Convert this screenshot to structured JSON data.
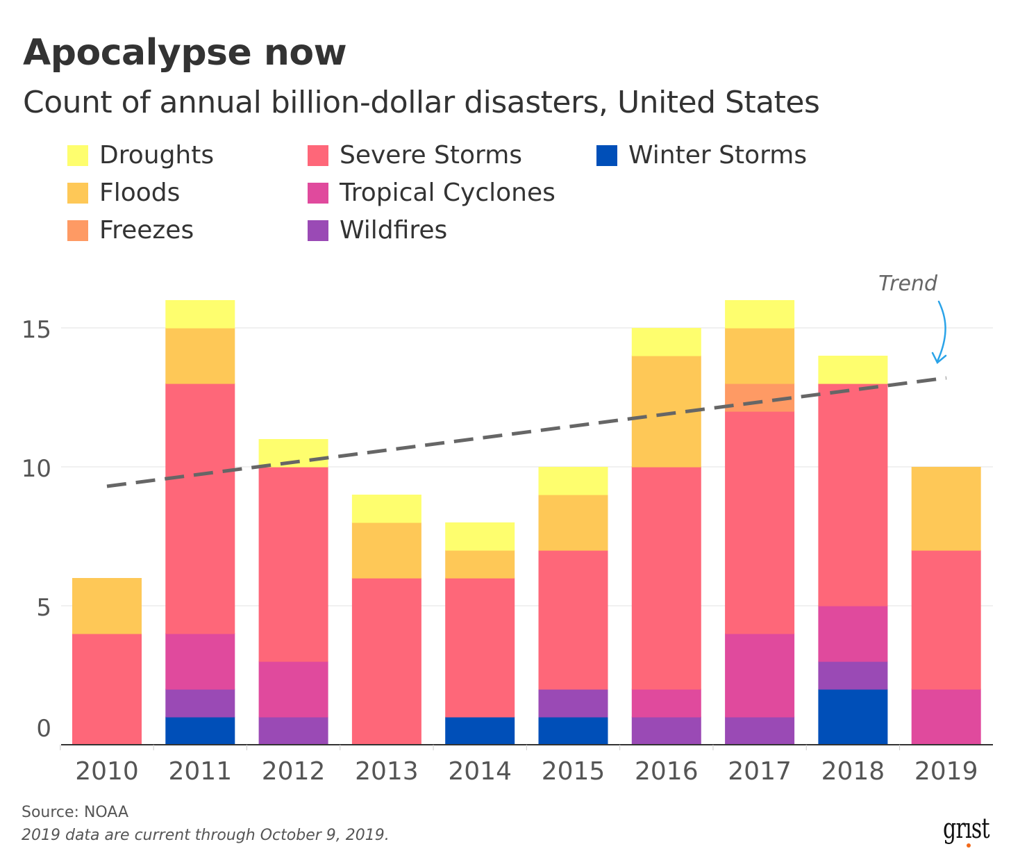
{
  "chart_data": {
    "type": "bar",
    "stacked": true,
    "title": "Apocalypse now",
    "subtitle": "Count of annual billion-dollar disasters, United States",
    "xlabel": "",
    "ylabel": "",
    "ylim": [
      0,
      16.5
    ],
    "yticks": [
      0,
      5,
      10,
      15
    ],
    "grid": true,
    "legend_placement": "top",
    "categories": [
      "2010",
      "2011",
      "2012",
      "2013",
      "2014",
      "2015",
      "2016",
      "2017",
      "2018",
      "2019"
    ],
    "series": [
      {
        "name": "Winter Storms",
        "color": "#004fb8",
        "values": [
          0,
          1,
          0,
          0,
          1,
          1,
          0,
          0,
          2,
          0
        ]
      },
      {
        "name": "Wildfires",
        "color": "#9a4ab5",
        "values": [
          0,
          1,
          1,
          0,
          0,
          1,
          1,
          1,
          1,
          0
        ]
      },
      {
        "name": "Tropical Cyclones",
        "color": "#e04a9d",
        "values": [
          0,
          2,
          2,
          0,
          0,
          0,
          1,
          3,
          2,
          2
        ]
      },
      {
        "name": "Severe Storms",
        "color": "#fe6779",
        "values": [
          4,
          9,
          7,
          6,
          5,
          5,
          8,
          8,
          8,
          5
        ]
      },
      {
        "name": "Freezes",
        "color": "#fe9a64",
        "values": [
          0,
          0,
          0,
          0,
          0,
          0,
          0,
          1,
          0,
          0
        ]
      },
      {
        "name": "Floods",
        "color": "#fec857",
        "values": [
          2,
          2,
          0,
          2,
          1,
          2,
          4,
          2,
          0,
          3
        ]
      },
      {
        "name": "Droughts",
        "color": "#fefe6e",
        "values": [
          0,
          1,
          1,
          1,
          1,
          1,
          1,
          1,
          1,
          0
        ]
      }
    ],
    "legend_order": [
      "Droughts",
      "Floods",
      "Freezes",
      "Severe Storms",
      "Tropical Cyclones",
      "Wildfires",
      "Winter Storms"
    ],
    "trend": {
      "label": "Trend",
      "start": {
        "x": "2010",
        "y": 9.3
      },
      "end": {
        "x": "2019",
        "y": 13.2
      },
      "color": "#666666",
      "arrow_color": "#2aa3e8"
    }
  },
  "footer": {
    "source": "Source: NOAA",
    "note": "2019 data are current through October 9, 2019.",
    "logo": "grist"
  }
}
